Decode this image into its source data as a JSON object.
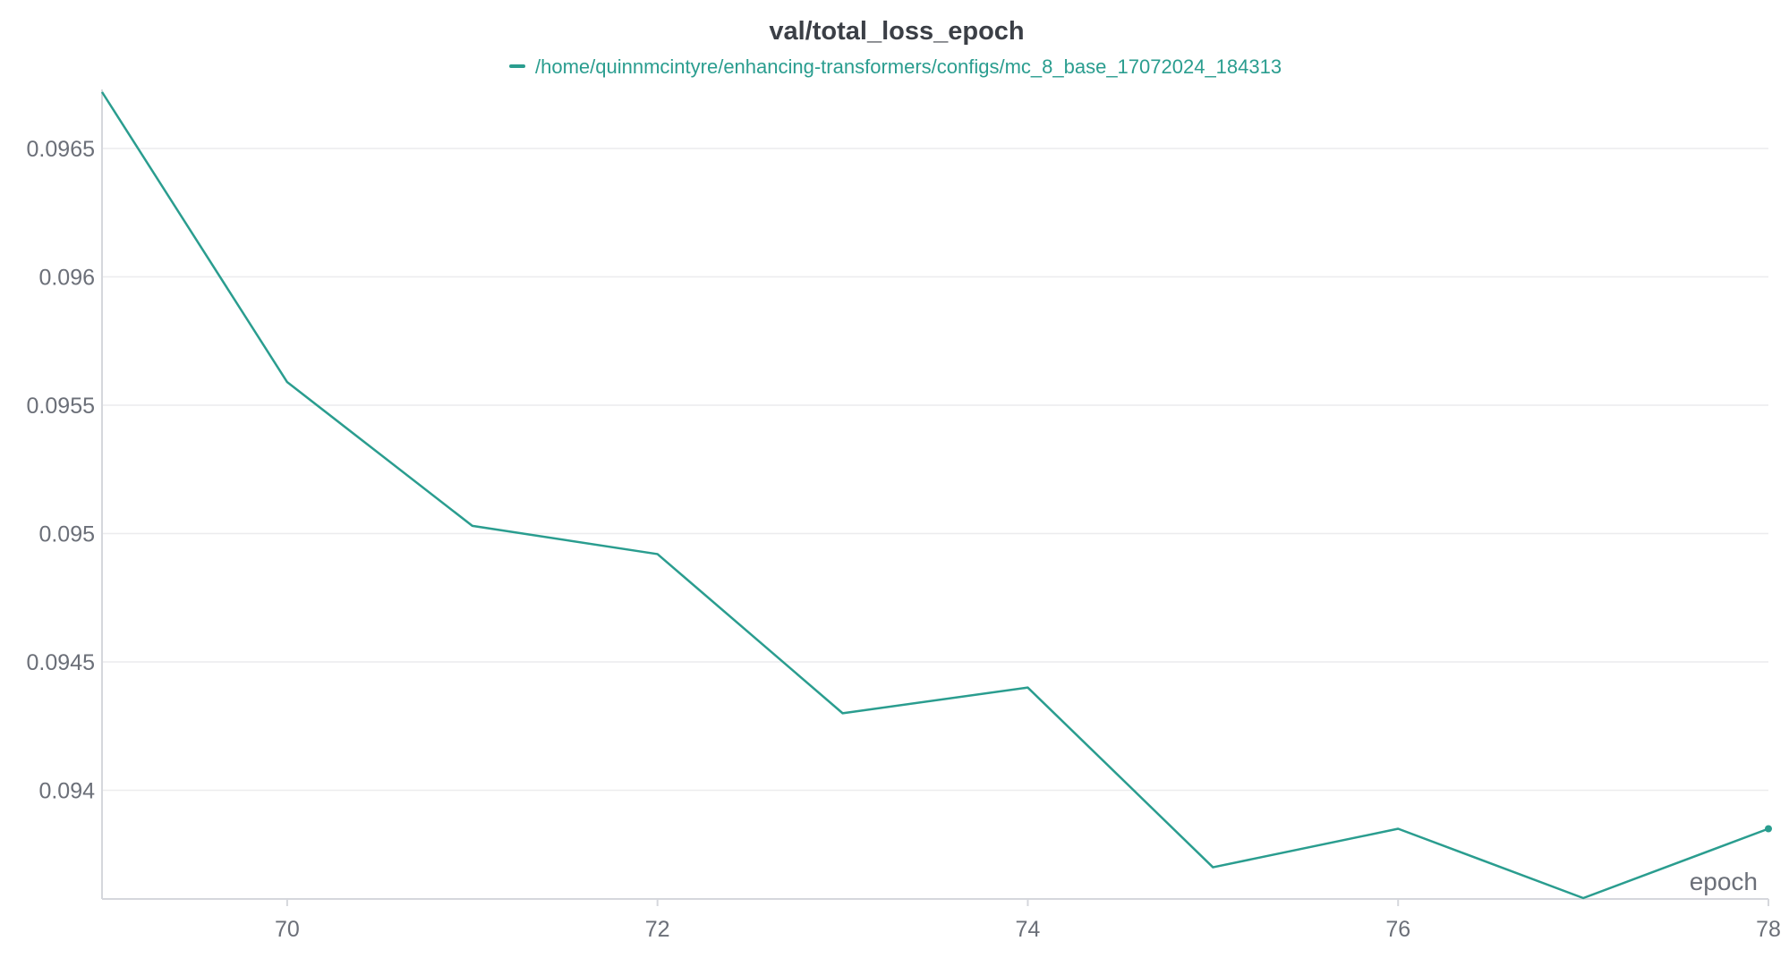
{
  "chart_data": {
    "type": "line",
    "title": "val/total_loss_epoch",
    "xlabel": "epoch",
    "ylabel": "",
    "x": [
      69,
      70,
      71,
      72,
      73,
      74,
      75,
      76,
      77,
      78
    ],
    "series": [
      {
        "name": "/home/quinnmcintyre/enhancing-transformers/configs/mc_8_base_17072024_184313",
        "color": "#2a9d8f",
        "values": [
          0.09672,
          0.09559,
          0.09503,
          0.09492,
          0.0943,
          0.0944,
          0.0937,
          0.09385,
          0.09358,
          0.09385
        ]
      }
    ],
    "xlim": [
      69,
      78
    ],
    "ylim": [
      0.09358,
      0.09673
    ],
    "xticks": [
      70,
      72,
      74,
      76,
      78
    ],
    "xtick_labels": [
      "70",
      "72",
      "74",
      "76",
      "78"
    ],
    "yticks": [
      0.094,
      0.0945,
      0.095,
      0.0955,
      0.096,
      0.0965
    ],
    "ytick_labels": [
      "0.094",
      "0.0945",
      "0.095",
      "0.0955",
      "0.096",
      "0.0965"
    ],
    "grid": true,
    "legend_position": "top-center"
  }
}
